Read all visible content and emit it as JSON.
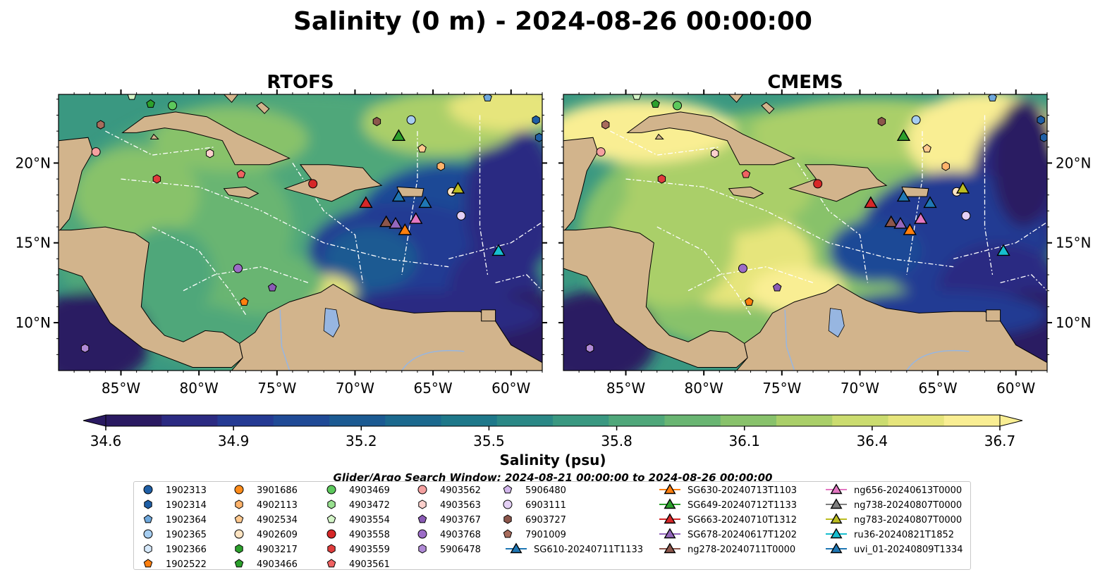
{
  "title": "Salinity (0 m) - 2024-08-26 00:00:00",
  "panels": [
    {
      "title": "RTOFS"
    },
    {
      "title": "CMEMS"
    }
  ],
  "axes": {
    "lon_ticks": [
      "85°W",
      "80°W",
      "75°W",
      "70°W",
      "65°W",
      "60°W"
    ],
    "lat_ticks": [
      "20°N",
      "15°N",
      "10°N"
    ],
    "lon_range": [
      -89,
      -58
    ],
    "lat_range": [
      7,
      24.3
    ]
  },
  "colorbar": {
    "label": "Salinity (psu)",
    "ticks": [
      "34.6",
      "34.9",
      "35.2",
      "35.5",
      "35.8",
      "36.1",
      "36.4",
      "36.7"
    ],
    "vmin": 34.6,
    "vmax": 36.7,
    "colors": [
      "#2a1a62",
      "#2b2a82",
      "#243a93",
      "#1f4a96",
      "#1b5a92",
      "#1b698e",
      "#1e788a",
      "#2a8886",
      "#3a9881",
      "#4fa77a",
      "#69b572",
      "#88c26b",
      "#aacf69",
      "#cbdc6f",
      "#e6e57c",
      "#f9ee93"
    ]
  },
  "search_window": "Glider/Argo Search Window: 2024-08-21 00:00:00 to 2024-08-26 00:00:00",
  "colors": {
    "land": "#d2b48c",
    "lake": "#97b6e1"
  },
  "legend": {
    "columns": [
      [
        {
          "label": "1902313",
          "marker": "circle",
          "color": "#1f5fa6"
        },
        {
          "label": "1902314",
          "marker": "hexagon",
          "color": "#1f5fa6"
        },
        {
          "label": "1902364",
          "marker": "pentagon",
          "color": "#6fa8dc"
        },
        {
          "label": "1902365",
          "marker": "circle",
          "color": "#a6cdf0"
        },
        {
          "label": "1902366",
          "marker": "hexagon",
          "color": "#d6e9fb"
        },
        {
          "label": "1902522",
          "marker": "pentagon",
          "color": "#ff7f0e"
        }
      ],
      [
        {
          "label": "3901686",
          "marker": "circle",
          "color": "#ff8c1a"
        },
        {
          "label": "4902113",
          "marker": "hexagon",
          "color": "#ffb36b"
        },
        {
          "label": "4902534",
          "marker": "pentagon",
          "color": "#ffc98f"
        },
        {
          "label": "4902609",
          "marker": "circle",
          "color": "#ffe4c2"
        },
        {
          "label": "4903217",
          "marker": "hexagon",
          "color": "#2ca02c"
        },
        {
          "label": "4903466",
          "marker": "pentagon",
          "color": "#2ca02c"
        }
      ],
      [
        {
          "label": "4903469",
          "marker": "circle",
          "color": "#5cc85c"
        },
        {
          "label": "4903472",
          "marker": "hexagon",
          "color": "#98e08f"
        },
        {
          "label": "4903554",
          "marker": "pentagon",
          "color": "#d4f5c8"
        },
        {
          "label": "4903558",
          "marker": "circle",
          "color": "#d62728"
        },
        {
          "label": "4903559",
          "marker": "hexagon",
          "color": "#e03c3c"
        },
        {
          "label": "4903561",
          "marker": "pentagon",
          "color": "#f06262"
        }
      ],
      [
        {
          "label": "4903562",
          "marker": "circle",
          "color": "#f4a0a0"
        },
        {
          "label": "4903563",
          "marker": "hexagon",
          "color": "#fcd0cc"
        },
        {
          "label": "4903767",
          "marker": "pentagon",
          "color": "#8a5bb5"
        },
        {
          "label": "4903768",
          "marker": "circle",
          "color": "#9c6cc7"
        },
        {
          "label": "5906478",
          "marker": "hexagon",
          "color": "#b08ad6"
        }
      ],
      [
        {
          "label": "5906480",
          "marker": "pentagon",
          "color": "#d2b6ec"
        },
        {
          "label": "6903111",
          "marker": "circle",
          "color": "#e4d0f5"
        },
        {
          "label": "6903727",
          "marker": "hexagon",
          "color": "#8c564b"
        },
        {
          "label": "7901009",
          "marker": "pentagon",
          "color": "#a86c5c"
        },
        {
          "label": "SG610-20240711T1133",
          "marker": "triangle",
          "color": "#1f77b4",
          "line": true
        }
      ],
      [
        {
          "label": "SG630-20240713T1103",
          "marker": "triangle",
          "color": "#ff7f0e",
          "line": true
        },
        {
          "label": "SG649-20240712T1133",
          "marker": "triangle",
          "color": "#2ca02c",
          "line": true
        },
        {
          "label": "SG663-20240710T1312",
          "marker": "triangle",
          "color": "#d62728",
          "line": true
        },
        {
          "label": "SG678-20240617T1202",
          "marker": "triangle",
          "color": "#9467bd",
          "line": true
        },
        {
          "label": "ng278-20240711T0000",
          "marker": "triangle",
          "color": "#8c564b",
          "line": true
        }
      ],
      [
        {
          "label": "ng656-20240613T0000",
          "marker": "triangle",
          "color": "#e377c2",
          "line": true
        },
        {
          "label": "ng738-20240807T0000",
          "marker": "triangle",
          "color": "#7f7f7f",
          "line": true
        },
        {
          "label": "ng783-20240807T0000",
          "marker": "triangle",
          "color": "#bcbd22",
          "line": true
        },
        {
          "label": "ru36-20240821T1852",
          "marker": "triangle",
          "color": "#17becf",
          "line": true
        },
        {
          "label": "uvi_01-20240809T1334",
          "marker": "triangle",
          "color": "#1f77b4",
          "line": true
        }
      ]
    ]
  },
  "observations": [
    {
      "lon": -86.3,
      "lat": 22.4,
      "marker": "hexagon",
      "color": "#a86c5c"
    },
    {
      "lon": -83.1,
      "lat": 23.7,
      "marker": "pentagon",
      "color": "#2ca02c"
    },
    {
      "lon": -81.7,
      "lat": 23.6,
      "marker": "circle",
      "color": "#5cc85c"
    },
    {
      "lon": -86.6,
      "lat": 20.7,
      "marker": "circle",
      "color": "#f4a0a0"
    },
    {
      "lon": -79.3,
      "lat": 20.6,
      "marker": "hexagon",
      "color": "#fcd0cc"
    },
    {
      "lon": -82.7,
      "lat": 19.0,
      "marker": "hexagon",
      "color": "#e03c3c"
    },
    {
      "lon": -77.3,
      "lat": 19.3,
      "marker": "pentagon",
      "color": "#f06262"
    },
    {
      "lon": -72.7,
      "lat": 18.7,
      "marker": "circle",
      "color": "#d62728"
    },
    {
      "lon": -77.5,
      "lat": 13.4,
      "marker": "circle",
      "color": "#9c6cc7"
    },
    {
      "lon": -75.3,
      "lat": 12.2,
      "marker": "pentagon",
      "color": "#8a5bb5"
    },
    {
      "lon": -77.1,
      "lat": 11.3,
      "marker": "pentagon",
      "color": "#ff7f0e"
    },
    {
      "lon": -87.3,
      "lat": 8.4,
      "marker": "hexagon",
      "color": "#b08ad6"
    },
    {
      "lon": -68.6,
      "lat": 22.6,
      "marker": "hexagon",
      "color": "#8c564b"
    },
    {
      "lon": -66.4,
      "lat": 22.7,
      "marker": "circle",
      "color": "#a6cdf0"
    },
    {
      "lon": -65.7,
      "lat": 20.9,
      "marker": "pentagon",
      "color": "#ffc98f"
    },
    {
      "lon": -64.5,
      "lat": 19.8,
      "marker": "hexagon",
      "color": "#ffb36b"
    },
    {
      "lon": -63.8,
      "lat": 18.2,
      "marker": "circle",
      "color": "#ffe4c2"
    },
    {
      "lon": -63.2,
      "lat": 16.7,
      "marker": "circle",
      "color": "#e4d0f5"
    },
    {
      "lon": -58.4,
      "lat": 22.7,
      "marker": "hexagon",
      "color": "#1f5fa6"
    },
    {
      "lon": -58.2,
      "lat": 21.6,
      "marker": "hexagon",
      "color": "#1f5fa6"
    },
    {
      "lon": -61.5,
      "lat": 24.1,
      "marker": "pentagon",
      "color": "#6fa8dc"
    },
    {
      "lon": -84.3,
      "lat": 24.2,
      "marker": "pentagon",
      "color": "#d4f5c8"
    },
    {
      "lon": -67.2,
      "lat": 21.7,
      "marker": "triangle",
      "color": "#2ca02c"
    },
    {
      "lon": -69.3,
      "lat": 17.5,
      "marker": "triangle",
      "color": "#d62728"
    },
    {
      "lon": -67.2,
      "lat": 17.9,
      "marker": "triangle",
      "color": "#1f77b4"
    },
    {
      "lon": -65.5,
      "lat": 17.5,
      "marker": "triangle",
      "color": "#1f77b4"
    },
    {
      "lon": -68.0,
      "lat": 16.3,
      "marker": "triangle",
      "color": "#8c564b"
    },
    {
      "lon": -67.4,
      "lat": 16.2,
      "marker": "triangle",
      "color": "#9467bd"
    },
    {
      "lon": -66.1,
      "lat": 16.5,
      "marker": "triangle",
      "color": "#e377c2"
    },
    {
      "lon": -66.8,
      "lat": 15.8,
      "marker": "triangle",
      "color": "#ff7f0e"
    },
    {
      "lon": -63.4,
      "lat": 18.4,
      "marker": "triangle",
      "color": "#bcbd22"
    },
    {
      "lon": -60.8,
      "lat": 14.5,
      "marker": "triangle",
      "color": "#17becf"
    }
  ]
}
